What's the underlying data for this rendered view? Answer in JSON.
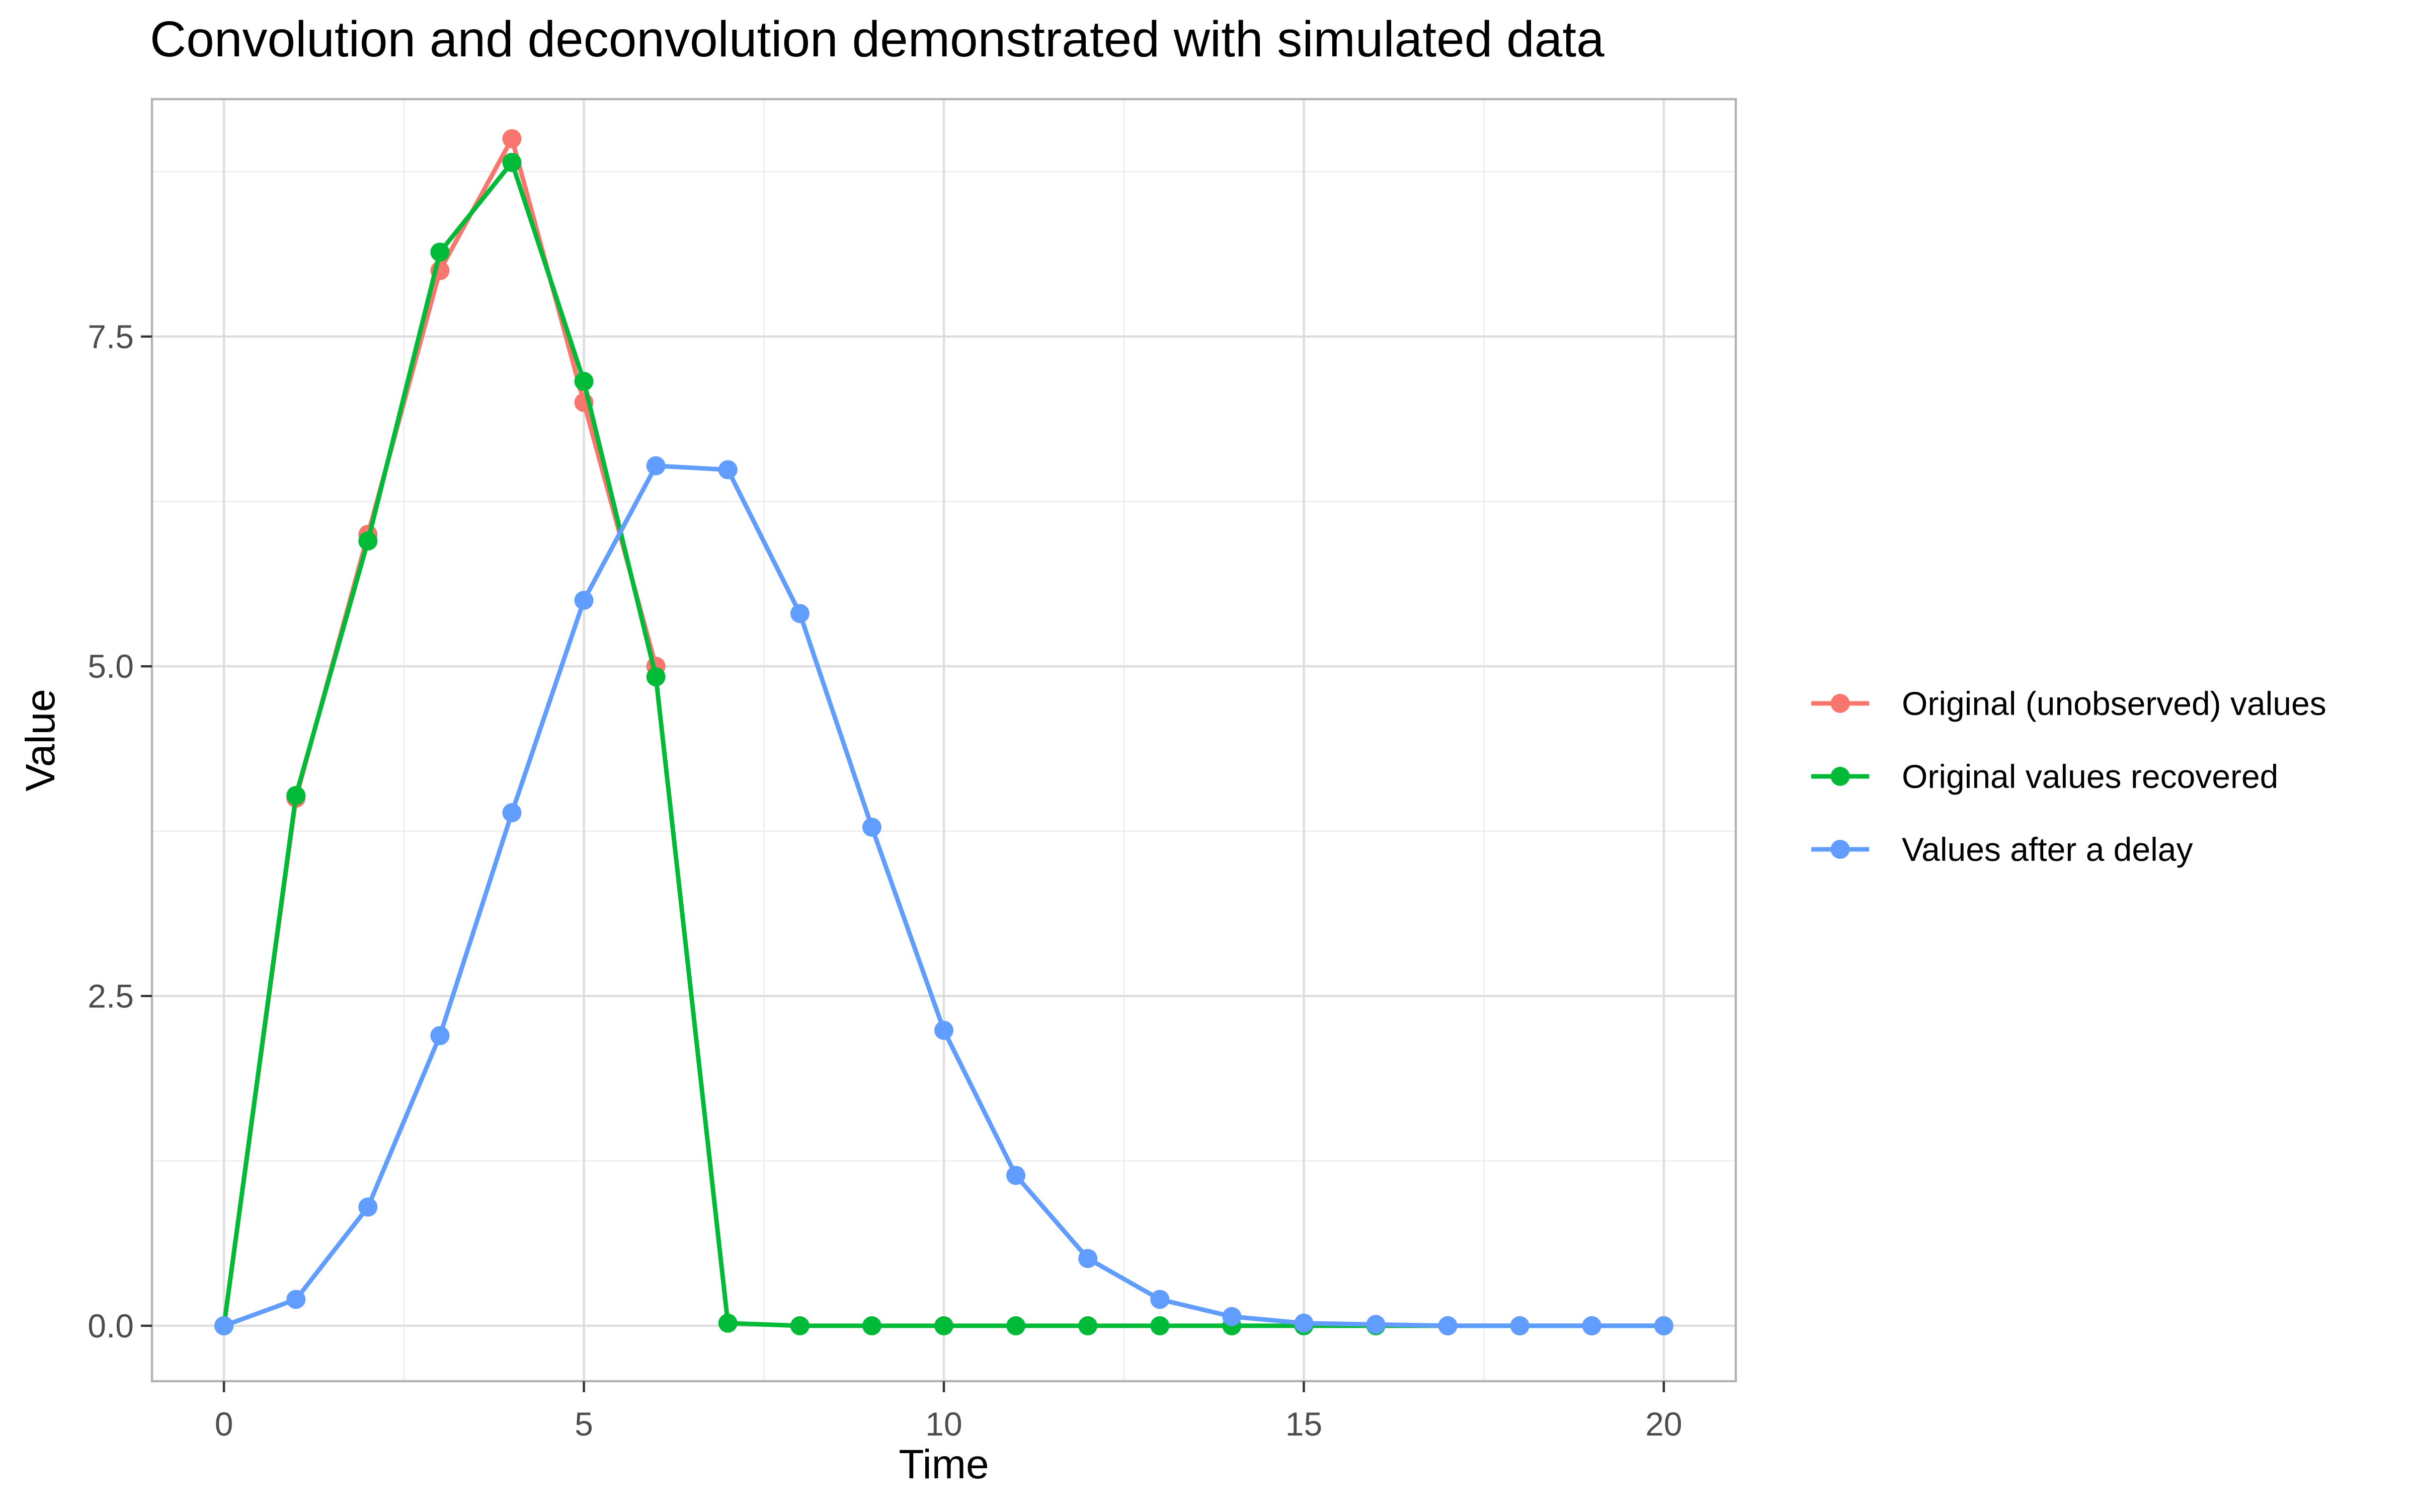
{
  "chart_data": {
    "type": "line",
    "title": "Convolution and deconvolution demonstrated with simulated data",
    "xlabel": "Time",
    "ylabel": "Value",
    "xlim": [
      -1,
      21
    ],
    "ylim": [
      -0.42,
      9.3
    ],
    "x_ticks": [
      0,
      5,
      10,
      15,
      20
    ],
    "x_tick_labels": [
      "0",
      "5",
      "10",
      "15",
      "20"
    ],
    "y_ticks": [
      0,
      2.5,
      5,
      7.5
    ],
    "y_tick_labels": [
      "0.0",
      "2.5",
      "5.0",
      "7.5"
    ],
    "grid": true,
    "legend_position": "right",
    "x": [
      0,
      1,
      2,
      3,
      4,
      5,
      6,
      7,
      8,
      9,
      10,
      11,
      12,
      13,
      14,
      15,
      16,
      17,
      18,
      19,
      20
    ],
    "series": [
      {
        "name": "Original (unobserved) values",
        "color": "#F8766D",
        "values": [
          0,
          4,
          6,
          8,
          9,
          7,
          5,
          null,
          null,
          null,
          null,
          null,
          null,
          null,
          null,
          null,
          null,
          null,
          null,
          null,
          null
        ]
      },
      {
        "name": "Original values recovered",
        "color": "#00BA38",
        "values": [
          0,
          4.02,
          5.95,
          8.14,
          8.82,
          7.16,
          4.92,
          0.02,
          0,
          0,
          0,
          0,
          0,
          0,
          0,
          0,
          0,
          0,
          0,
          0,
          0
        ]
      },
      {
        "name": "Values after a delay",
        "color": "#619CFF",
        "values": [
          0,
          0.2,
          0.9,
          2.2,
          3.89,
          5.5,
          6.52,
          6.49,
          5.4,
          3.78,
          2.24,
          1.14,
          0.51,
          0.2,
          0.07,
          0.02,
          0.01,
          0,
          0,
          0,
          0
        ]
      }
    ]
  }
}
